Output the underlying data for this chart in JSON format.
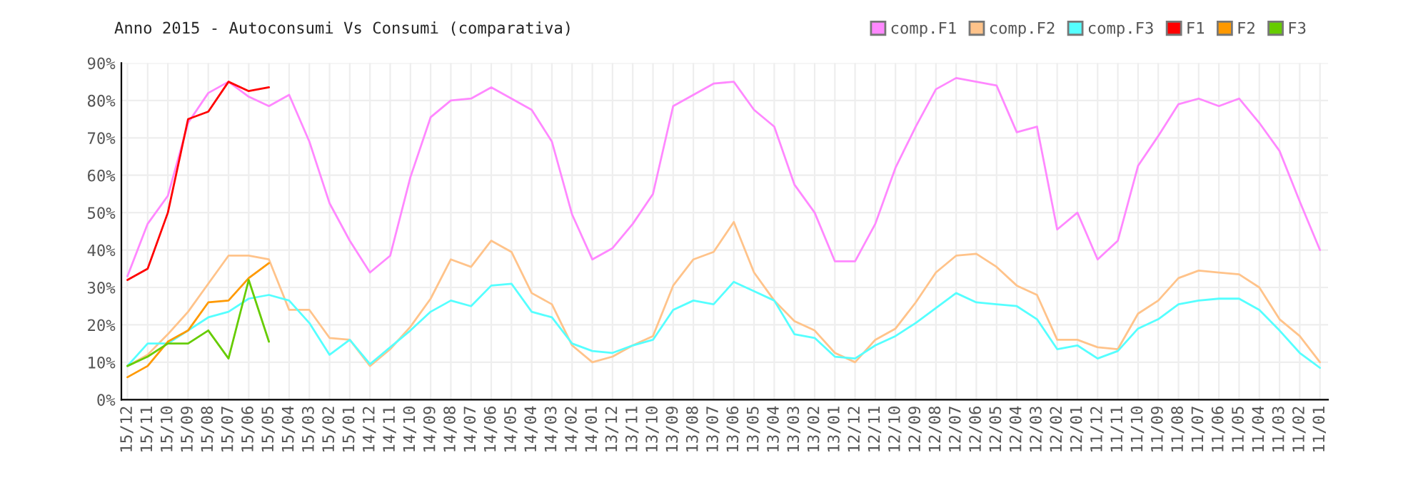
{
  "chart_data": {
    "type": "line",
    "title": "Anno 2015 - Autoconsumi Vs Consumi (comparativa)",
    "categories": [
      "15/12",
      "15/11",
      "15/10",
      "15/09",
      "15/08",
      "15/07",
      "15/06",
      "15/05",
      "15/04",
      "15/03",
      "15/02",
      "15/01",
      "14/12",
      "14/11",
      "14/10",
      "14/09",
      "14/08",
      "14/07",
      "14/06",
      "14/05",
      "14/04",
      "14/03",
      "14/02",
      "14/01",
      "13/12",
      "13/11",
      "13/10",
      "13/09",
      "13/08",
      "13/07",
      "13/06",
      "13/05",
      "13/04",
      "13/03",
      "13/02",
      "13/01",
      "12/12",
      "12/11",
      "12/10",
      "12/09",
      "12/08",
      "12/07",
      "12/06",
      "12/05",
      "12/04",
      "12/03",
      "12/02",
      "12/01",
      "11/12",
      "11/11",
      "11/10",
      "11/09",
      "11/08",
      "11/07",
      "11/06",
      "11/05",
      "11/04",
      "11/03",
      "11/02",
      "11/01"
    ],
    "series": [
      {
        "name": "comp.F1",
        "color": "#ff88ff",
        "values": [
          33,
          47,
          54.5,
          74,
          82,
          85,
          81,
          78.5,
          81.5,
          69,
          52.5,
          42.5,
          34,
          38.5,
          59.5,
          75.5,
          80,
          80.5,
          83.5,
          80.5,
          77.5,
          69,
          49.5,
          37.5,
          40.5,
          47,
          55,
          78.5,
          81.5,
          84.5,
          85,
          77.5,
          73,
          57.5,
          50,
          37,
          37,
          47,
          62,
          73,
          83,
          86,
          85,
          84,
          71.5,
          73,
          45.5,
          50,
          37.5,
          42.5,
          62.5,
          70.5,
          79,
          80.5,
          78.5,
          80.5,
          74,
          66.5,
          53,
          40
        ]
      },
      {
        "name": "comp.F2",
        "color": "#ffc38a",
        "values": [
          9,
          12,
          17.5,
          23.5,
          31,
          38.5,
          38.5,
          37.5,
          24,
          24,
          16.5,
          16,
          9,
          13.5,
          19.5,
          27,
          37.5,
          35.5,
          42.5,
          39.5,
          28.5,
          25.5,
          14.5,
          10,
          11.5,
          14.5,
          17,
          30.5,
          37.5,
          39.5,
          47.5,
          34,
          26.5,
          21,
          18.5,
          12.5,
          10,
          16,
          19,
          26,
          34,
          38.5,
          39,
          35.5,
          30.5,
          28,
          16,
          16,
          14,
          13.5,
          23,
          26.5,
          32.5,
          34.5,
          34,
          33.5,
          30,
          21.5,
          17,
          10
        ]
      },
      {
        "name": "comp.F3",
        "color": "#55ffff",
        "values": [
          9,
          15,
          15,
          18.5,
          22,
          23.5,
          27,
          28,
          26.5,
          20.5,
          12,
          16,
          9.5,
          14,
          18.5,
          23.5,
          26.5,
          25,
          30.5,
          31,
          23.5,
          22,
          15,
          13,
          12.5,
          14.5,
          16,
          24,
          26.5,
          25.5,
          31.5,
          29,
          26.5,
          17.5,
          16.5,
          11.5,
          11,
          14.5,
          17,
          20.5,
          24.5,
          28.5,
          26,
          25.5,
          25,
          21.5,
          13.5,
          14.5,
          11,
          13,
          19,
          21.5,
          25.5,
          26.5,
          27,
          27,
          24,
          18.5,
          12.5,
          8.5
        ]
      },
      {
        "name": "F1",
        "color": "#ff0000",
        "values": [
          32,
          35,
          50,
          75,
          77,
          85,
          82.5,
          83.5,
          null,
          null,
          null,
          null,
          null,
          null,
          null,
          null,
          null,
          null,
          null,
          null,
          null,
          null,
          null,
          null,
          null,
          null,
          null,
          null,
          null,
          null,
          null,
          null,
          null,
          null,
          null,
          null,
          null,
          null,
          null,
          null,
          null,
          null,
          null,
          null,
          null,
          null,
          null,
          null,
          null,
          null,
          null,
          null,
          null,
          null,
          null,
          null,
          null,
          null,
          null,
          null
        ]
      },
      {
        "name": "F2",
        "color": "#ff9900",
        "values": [
          6,
          9,
          15.5,
          18.5,
          26,
          26.5,
          32.5,
          36.5,
          null,
          null,
          null,
          null,
          null,
          null,
          null,
          null,
          null,
          null,
          null,
          null,
          null,
          null,
          null,
          null,
          null,
          null,
          null,
          null,
          null,
          null,
          null,
          null,
          null,
          null,
          null,
          null,
          null,
          null,
          null,
          null,
          null,
          null,
          null,
          null,
          null,
          null,
          null,
          null,
          null,
          null,
          null,
          null,
          null,
          null,
          null,
          null,
          null,
          null,
          null,
          null
        ]
      },
      {
        "name": "F3",
        "color": "#66cc00",
        "values": [
          9,
          11.5,
          15,
          15,
          18.5,
          11,
          32,
          15.5,
          null,
          null,
          null,
          null,
          null,
          null,
          null,
          null,
          null,
          null,
          null,
          null,
          null,
          null,
          null,
          null,
          null,
          null,
          null,
          null,
          null,
          null,
          null,
          null,
          null,
          null,
          null,
          null,
          null,
          null,
          null,
          null,
          null,
          null,
          null,
          null,
          null,
          null,
          null,
          null,
          null,
          null,
          null,
          null,
          null,
          null,
          null,
          null,
          null,
          null,
          null,
          null
        ]
      }
    ],
    "ylim": [
      0,
      90
    ],
    "yticks": [
      {
        "value": 0,
        "label": "0%"
      },
      {
        "value": 10,
        "label": "10%"
      },
      {
        "value": 20,
        "label": "20%"
      },
      {
        "value": 30,
        "label": "30%"
      },
      {
        "value": 40,
        "label": "40%"
      },
      {
        "value": 50,
        "label": "50%"
      },
      {
        "value": 60,
        "label": "60%"
      },
      {
        "value": 70,
        "label": "70%"
      },
      {
        "value": 80,
        "label": "80%"
      },
      {
        "value": 90,
        "label": "90%"
      }
    ],
    "grid": true,
    "legend": "top right",
    "marker": "none",
    "line_style": "solid"
  }
}
